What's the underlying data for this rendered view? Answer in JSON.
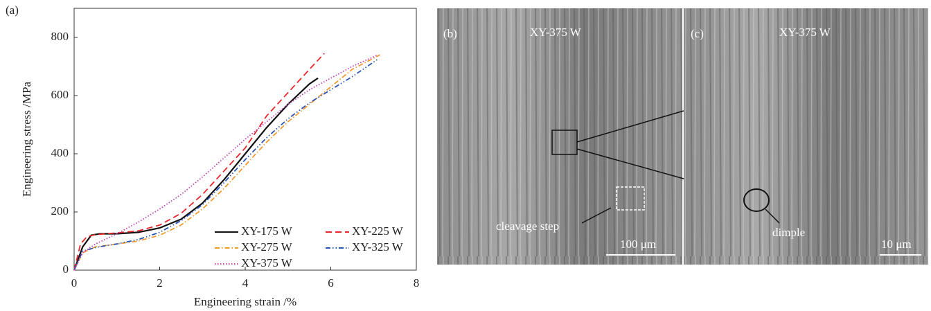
{
  "chart_data": {
    "type": "line",
    "panel_label": "(a)",
    "x_label": "Engineering strain /%",
    "y_label": "Engineering stress /MPa",
    "xlim": [
      0,
      8
    ],
    "xticks": [
      0,
      2,
      4,
      6,
      8
    ],
    "ylim": [
      0,
      900
    ],
    "yticks": [
      0,
      200,
      400,
      600,
      800
    ],
    "grid": false,
    "legend": "lower right",
    "series": [
      {
        "name": "XY-175 W",
        "color": "#111111",
        "line_style": "solid",
        "x": [
          0,
          0.2,
          0.4,
          0.6,
          1,
          1.5,
          2,
          2.5,
          3,
          3.5,
          4,
          4.5,
          5,
          5.5,
          5.7
        ],
        "values": [
          0,
          80,
          120,
          125,
          125,
          130,
          145,
          175,
          230,
          310,
          400,
          490,
          570,
          640,
          660
        ]
      },
      {
        "name": "XY-225 W",
        "color": "#e8262b",
        "line_style": "dashed",
        "x": [
          0,
          0.15,
          0.3,
          0.5,
          1,
          1.5,
          2,
          2.5,
          3,
          3.5,
          4,
          4.5,
          5,
          5.5,
          5.85
        ],
        "values": [
          0,
          90,
          115,
          122,
          128,
          135,
          155,
          195,
          260,
          340,
          420,
          530,
          610,
          690,
          745
        ]
      },
      {
        "name": "XY-275 W",
        "color": "#f39a2e",
        "line_style": "dashdot",
        "x": [
          0,
          0.2,
          0.5,
          1,
          1.5,
          2,
          2.5,
          3,
          3.5,
          4,
          4.5,
          5,
          5.5,
          6,
          6.5,
          7.15
        ],
        "values": [
          0,
          60,
          80,
          90,
          100,
          120,
          155,
          210,
          280,
          360,
          440,
          510,
          570,
          630,
          690,
          740
        ]
      },
      {
        "name": "XY-325 W",
        "color": "#2a55b5",
        "line_style": "dashdotdot",
        "x": [
          0,
          0.2,
          0.5,
          1,
          1.5,
          2,
          2.5,
          3,
          3.5,
          4,
          4.5,
          5,
          5.5,
          6,
          6.5,
          7.1
        ],
        "values": [
          0,
          65,
          78,
          90,
          105,
          130,
          170,
          225,
          300,
          380,
          455,
          520,
          575,
          620,
          665,
          725
        ]
      },
      {
        "name": "XY-375 W",
        "color": "#c040b8",
        "line_style": "dotted",
        "x": [
          0,
          0.2,
          0.5,
          1,
          1.5,
          2,
          2.5,
          3,
          3.5,
          4,
          4.5,
          5,
          5.5,
          6,
          6.5,
          7.1
        ],
        "values": [
          0,
          60,
          90,
          125,
          165,
          210,
          260,
          320,
          385,
          450,
          510,
          570,
          620,
          660,
          700,
          740
        ]
      }
    ]
  },
  "images": [
    {
      "panel_label": "(b)",
      "caption": "XY-375 W",
      "annotation": "cleavage step",
      "scale_bar": "100 μm"
    },
    {
      "panel_label": "(c)",
      "caption": "XY-375 W",
      "annotation": "dimple",
      "scale_bar": "10 μm"
    }
  ]
}
